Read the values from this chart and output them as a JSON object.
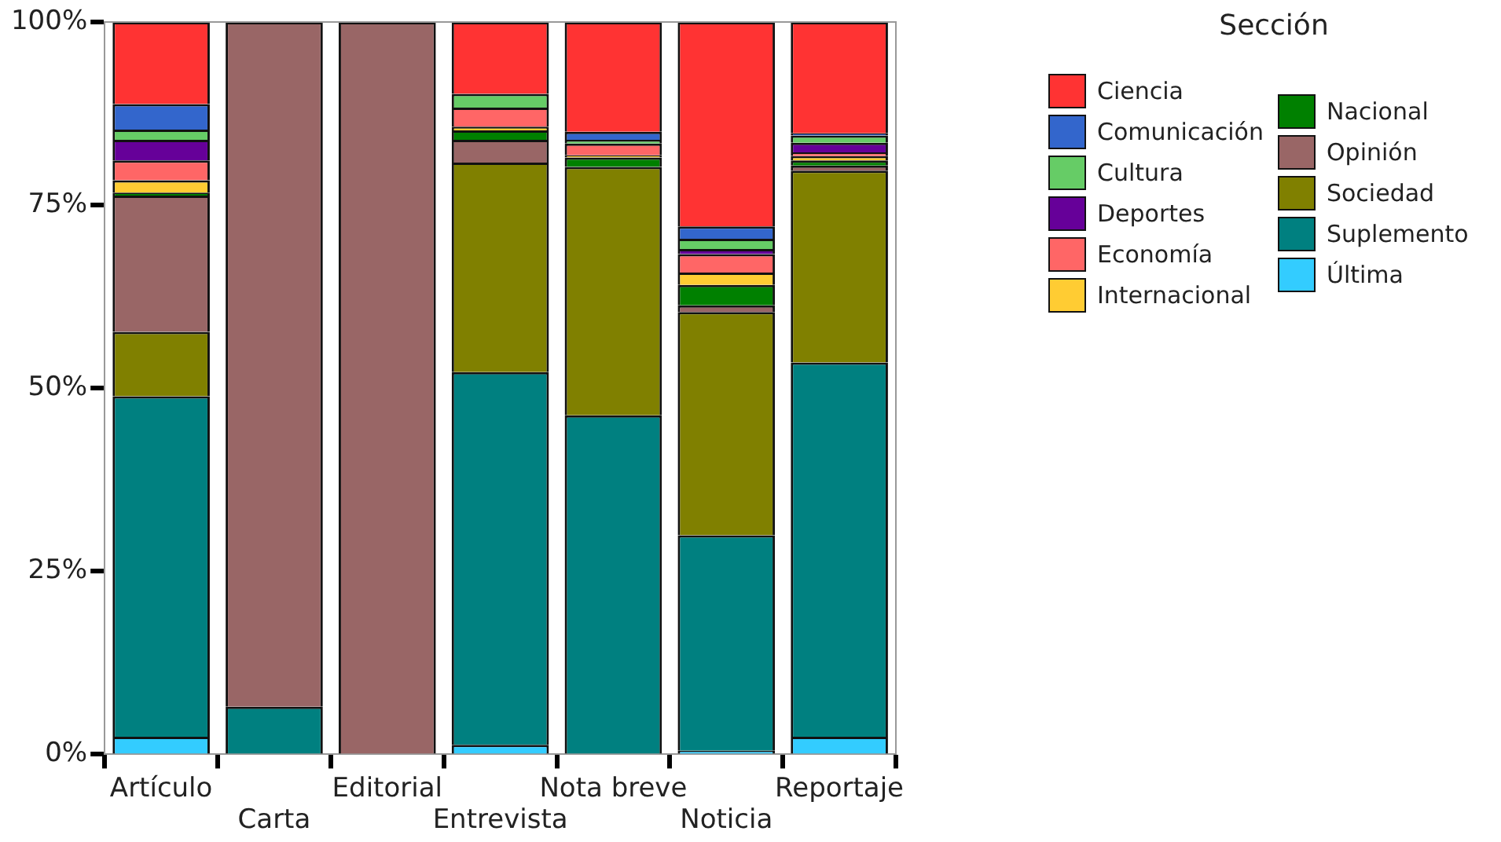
{
  "chart_data": {
    "type": "bar",
    "stacked": true,
    "legend": "right",
    "legend_title": "Sección",
    "grid": false,
    "categories": [
      "Artículo",
      "Carta",
      "Editorial",
      "Entrevista",
      "Nota breve",
      "Noticia",
      "Reportaje"
    ],
    "ylim": [
      0,
      100
    ],
    "yticks": [
      {
        "value": 0,
        "label": "0%"
      },
      {
        "value": 25,
        "label": "25%"
      },
      {
        "value": 50,
        "label": "50%"
      },
      {
        "value": 75,
        "label": "75%"
      },
      {
        "value": 100,
        "label": "100%"
      }
    ],
    "series": [
      {
        "name": "Última",
        "color": "#33ccff",
        "values": [
          2.4,
          0,
          0,
          1.3,
          0,
          0.5,
          2.4
        ]
      },
      {
        "name": "Suplemento",
        "color": "#008080",
        "values": [
          46.5,
          6.5,
          0,
          50.9,
          46.3,
          29.4,
          51.1
        ]
      },
      {
        "name": "Sociedad",
        "color": "#808000",
        "values": [
          8.8,
          0,
          0,
          28.6,
          33.9,
          30.5,
          26.2
        ]
      },
      {
        "name": "Opinión",
        "color": "#996666",
        "values": [
          18.6,
          93.5,
          100,
          3.1,
          0,
          0.9,
          0.7
        ]
      },
      {
        "name": "Nacional",
        "color": "#008000",
        "values": [
          0.4,
          0,
          0,
          1.3,
          1.3,
          2.8,
          0.7
        ]
      },
      {
        "name": "Internacional",
        "color": "#ffcc33",
        "values": [
          1.7,
          0,
          0,
          0.5,
          0.3,
          1.7,
          0.6
        ]
      },
      {
        "name": "Economía",
        "color": "#ff6666",
        "values": [
          2.7,
          0,
          0,
          2.6,
          1.6,
          2.5,
          0.5
        ]
      },
      {
        "name": "Deportes",
        "color": "#660099",
        "values": [
          2.8,
          0,
          0,
          0,
          0,
          0.7,
          1.3
        ]
      },
      {
        "name": "Cultura",
        "color": "#66cc66",
        "values": [
          1.4,
          0,
          0,
          1.9,
          0.5,
          1.4,
          1.0
        ]
      },
      {
        "name": "Comunicación",
        "color": "#3366cc",
        "values": [
          3.5,
          0,
          0,
          0,
          1.1,
          1.7,
          0.3
        ]
      },
      {
        "name": "Ciencia",
        "color": "#ff3333",
        "values": [
          11.2,
          0,
          0,
          9.8,
          15.0,
          27.9,
          15.2
        ]
      }
    ]
  }
}
